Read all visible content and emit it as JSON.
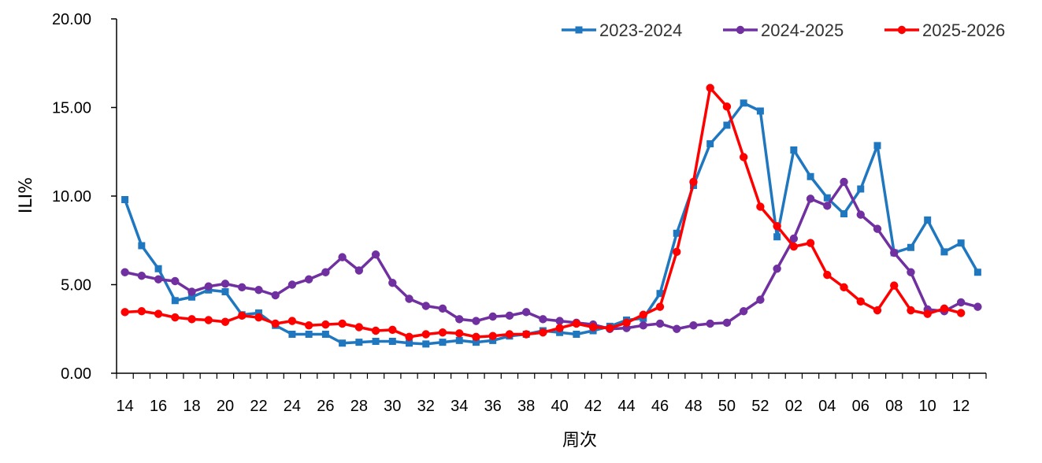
{
  "chart_data": {
    "type": "line",
    "ylabel": "ILI%",
    "xlabel": "周次",
    "ylim": [
      0,
      20
    ],
    "ytick_labels": [
      "0.00",
      "5.00",
      "10.00",
      "15.00",
      "20.00"
    ],
    "ytick_values": [
      0,
      5,
      10,
      15,
      20
    ],
    "categories": [
      "14",
      "15",
      "16",
      "17",
      "18",
      "19",
      "20",
      "21",
      "22",
      "23",
      "24",
      "25",
      "26",
      "27",
      "28",
      "29",
      "30",
      "31",
      "32",
      "33",
      "34",
      "35",
      "36",
      "37",
      "38",
      "39",
      "40",
      "41",
      "42",
      "43",
      "44",
      "45",
      "46",
      "47",
      "48",
      "49",
      "50",
      "51",
      "52",
      "01",
      "02",
      "03",
      "04",
      "05",
      "06",
      "07",
      "08",
      "09",
      "10",
      "11",
      "12",
      "13"
    ],
    "xtick_labels": [
      "14",
      "16",
      "18",
      "20",
      "22",
      "24",
      "26",
      "28",
      "30",
      "32",
      "34",
      "36",
      "38",
      "40",
      "42",
      "44",
      "46",
      "48",
      "50",
      "52",
      "02",
      "04",
      "06",
      "08",
      "10",
      "12"
    ],
    "legend_position": "top-right",
    "grid": false,
    "series": [
      {
        "name": "2023-2024",
        "color": "#1F77C0",
        "marker": "square",
        "values": [
          9.8,
          7.2,
          5.9,
          4.1,
          4.3,
          4.7,
          4.6,
          3.3,
          3.4,
          2.7,
          2.2,
          2.2,
          2.2,
          1.7,
          1.75,
          1.8,
          1.8,
          1.7,
          1.65,
          1.75,
          1.85,
          1.75,
          1.85,
          2.1,
          2.2,
          2.4,
          2.3,
          2.2,
          2.4,
          2.65,
          3.0,
          3.1,
          4.5,
          7.9,
          10.6,
          12.95,
          14.0,
          15.25,
          14.8,
          7.7,
          12.6,
          11.1,
          9.9,
          9.0,
          10.4,
          12.85,
          6.8,
          7.1,
          8.65,
          6.85,
          7.35,
          5.7
        ]
      },
      {
        "name": "2024-2025",
        "color": "#7030A0",
        "marker": "circle",
        "values": [
          5.7,
          5.5,
          5.3,
          5.2,
          4.6,
          4.9,
          5.05,
          4.85,
          4.7,
          4.4,
          5.0,
          5.3,
          5.7,
          6.55,
          5.8,
          6.7,
          5.1,
          4.2,
          3.8,
          3.65,
          3.05,
          2.95,
          3.2,
          3.25,
          3.45,
          3.05,
          2.95,
          2.85,
          2.75,
          2.5,
          2.55,
          2.7,
          2.8,
          2.5,
          2.7,
          2.8,
          2.85,
          3.5,
          4.15,
          5.9,
          7.6,
          9.85,
          9.45,
          10.8,
          8.95,
          8.15,
          6.8,
          5.7,
          3.6,
          3.5,
          4.0,
          3.75
        ]
      },
      {
        "name": "2025-2026",
        "color": "#FF0000",
        "marker": "circle",
        "values": [
          3.45,
          3.5,
          3.35,
          3.15,
          3.05,
          3.0,
          2.9,
          3.25,
          3.15,
          2.8,
          2.95,
          2.7,
          2.75,
          2.8,
          2.6,
          2.4,
          2.45,
          2.05,
          2.2,
          2.3,
          2.25,
          2.05,
          2.1,
          2.2,
          2.2,
          2.3,
          2.55,
          2.8,
          2.6,
          2.55,
          2.85,
          3.3,
          3.75,
          6.85,
          10.8,
          16.1,
          15.05,
          12.2,
          9.4,
          8.3,
          7.15,
          7.35,
          5.55,
          4.85,
          4.05,
          3.55,
          4.95,
          3.55,
          3.35,
          3.65,
          3.4,
          null
        ]
      }
    ]
  }
}
